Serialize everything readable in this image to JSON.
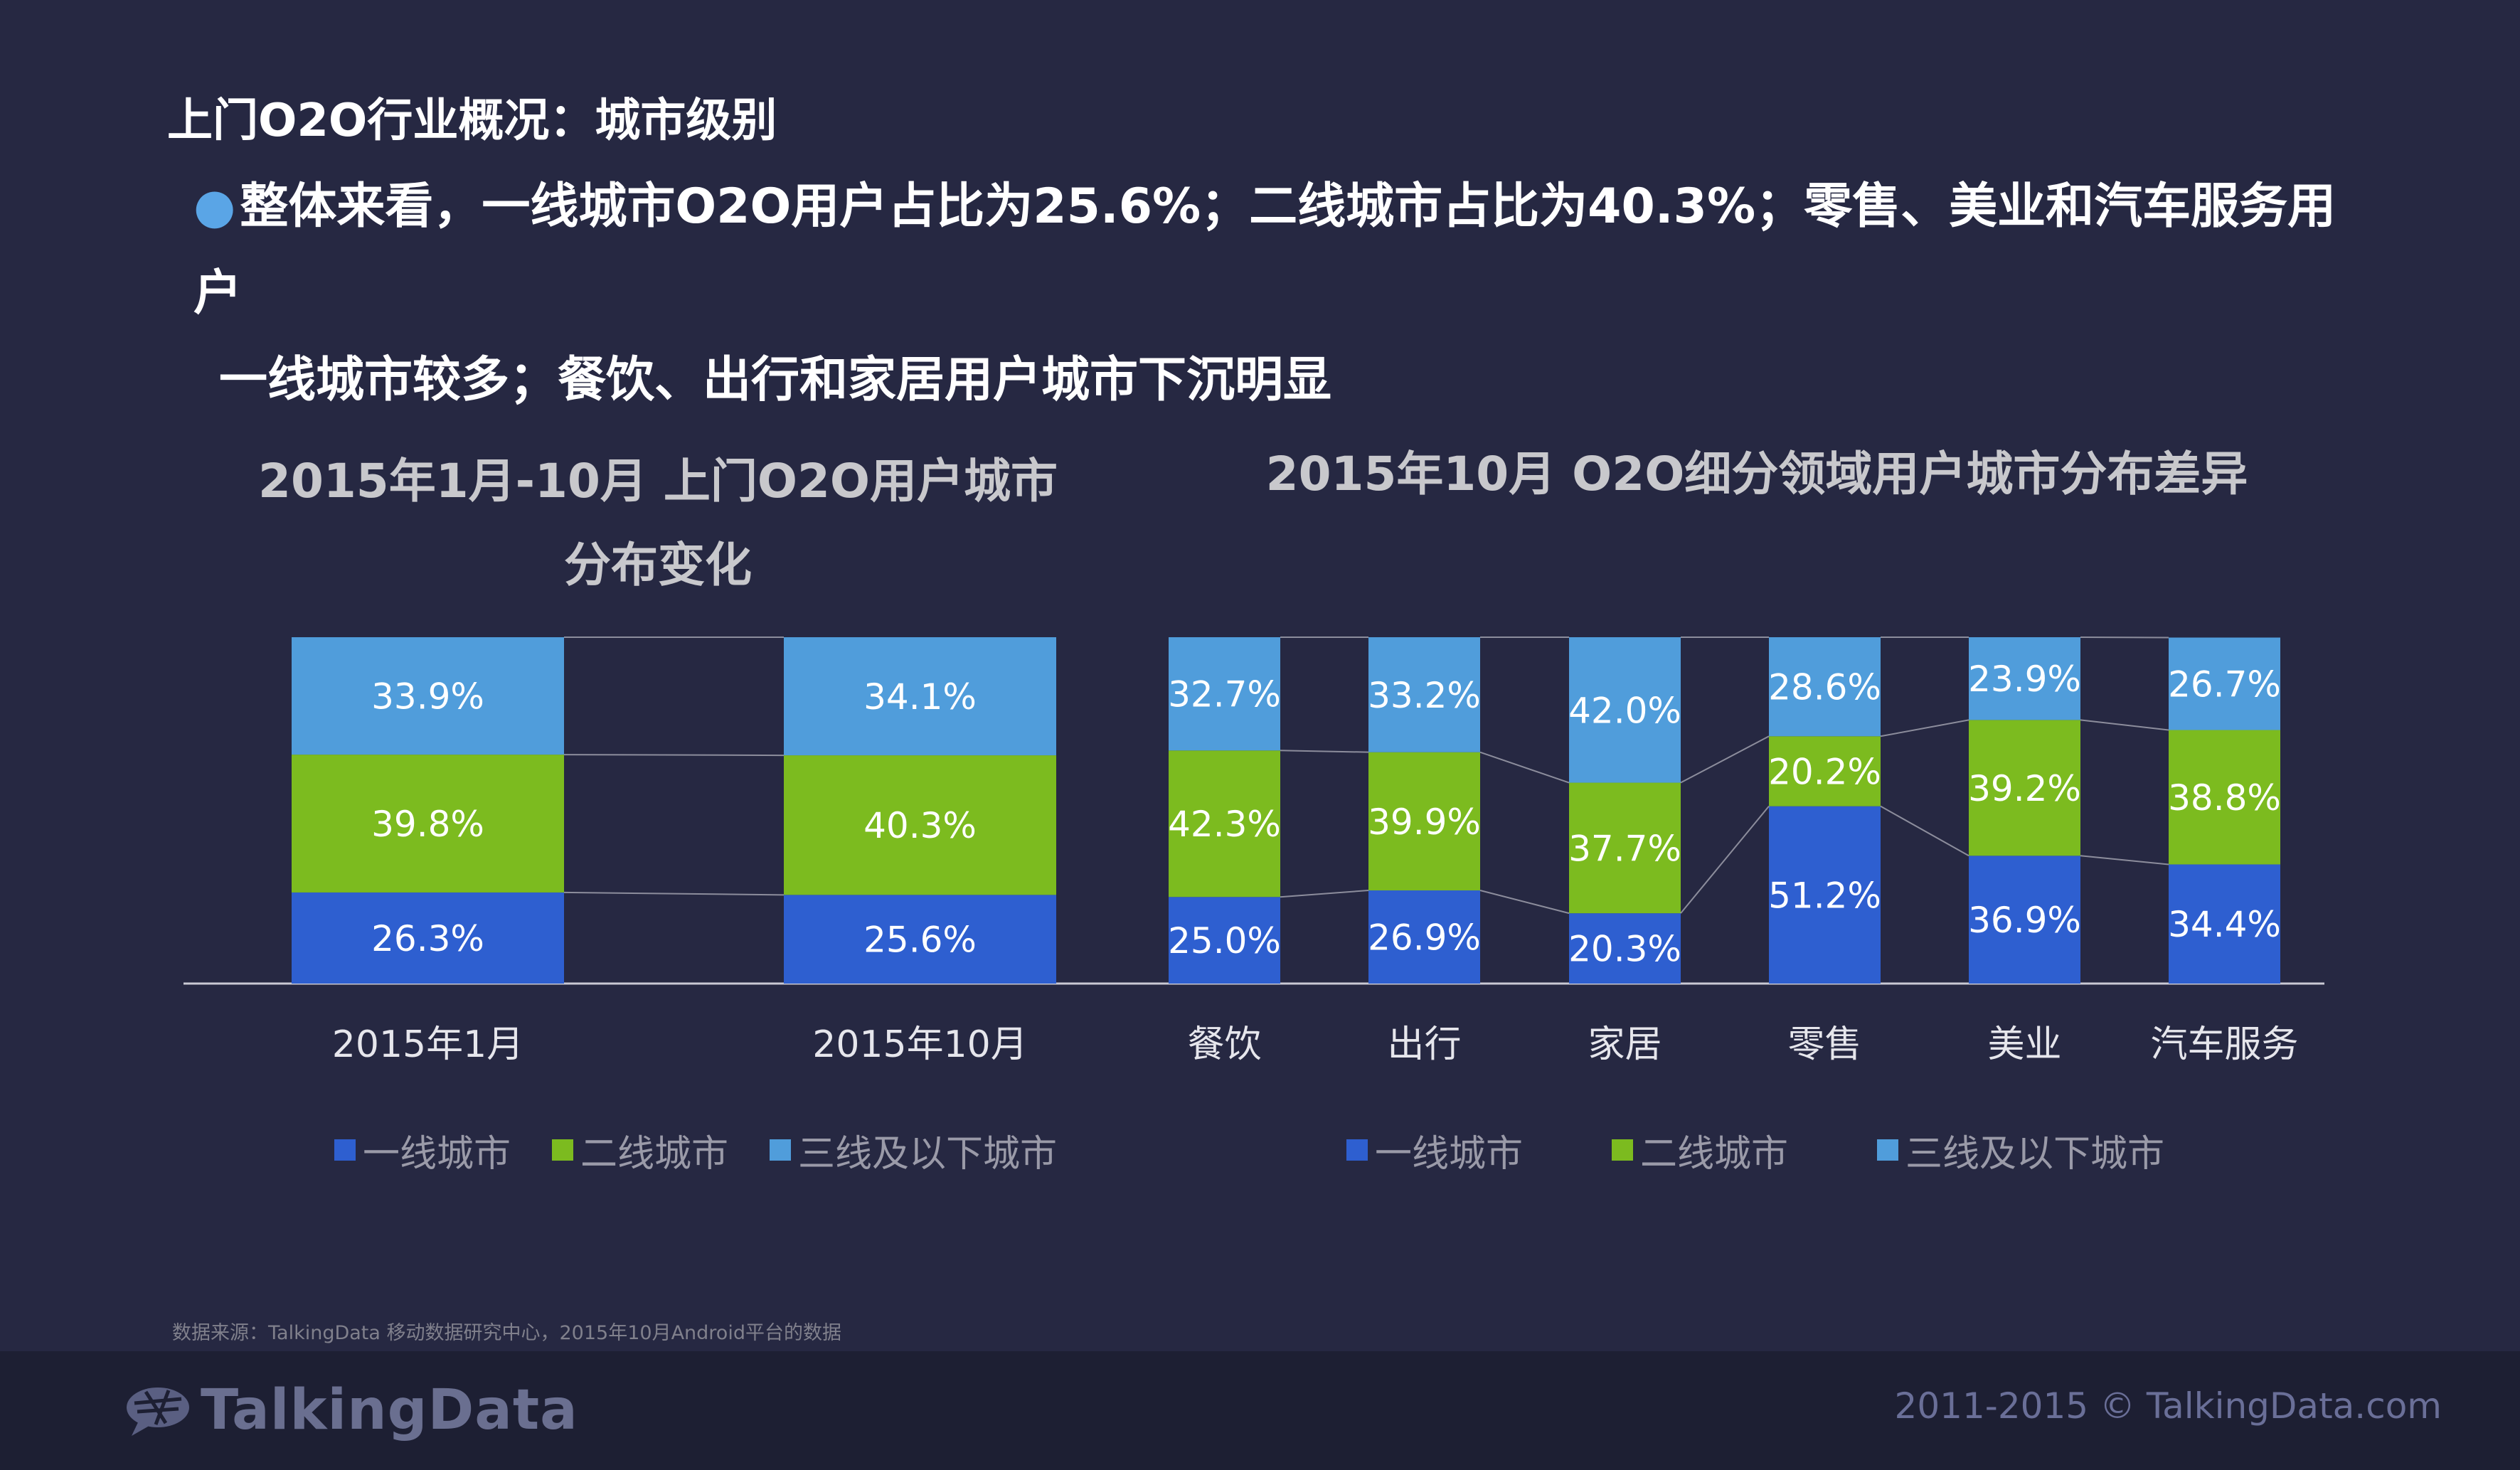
{
  "heading": "上门O2O行业概况：城市级别",
  "bullet": {
    "line1": "整体来看，一线城市O2O用户占比为25.6%；二线城市占比为40.3%；零售、美业和汽车服务用户",
    "line2": "一线城市较多；餐饮、出行和家居用户城市下沉明显"
  },
  "left_title": {
    "line1": "2015年1月-10月  上门O2O用户城市",
    "line2": "分布变化"
  },
  "right_title": "2015年10月  O2O细分领域用户城市分布差异",
  "colors": {
    "tier1": "#2e5fd0",
    "tier2": "#7cbb1f",
    "tier3": "#509ddb"
  },
  "legend": [
    "一线城市",
    "二线城市",
    "三线及以下城市"
  ],
  "chart_data": [
    {
      "type": "bar",
      "stacked": true,
      "title": "2015年1月-10月  上门O2O用户城市分布变化",
      "categories": [
        "2015年1月",
        "2015年10月"
      ],
      "series": [
        {
          "name": "一线城市",
          "values": [
            26.3,
            25.6
          ]
        },
        {
          "name": "二线城市",
          "values": [
            39.8,
            40.3
          ]
        },
        {
          "name": "三线及以下城市",
          "values": [
            33.9,
            34.1
          ]
        }
      ],
      "ylim": [
        0,
        100
      ],
      "legend_position": "bottom"
    },
    {
      "type": "bar",
      "stacked": true,
      "title": "2015年10月  O2O细分领域用户城市分布差异",
      "categories": [
        "餐饮",
        "出行",
        "家居",
        "零售",
        "美业",
        "汽车服务"
      ],
      "series": [
        {
          "name": "一线城市",
          "values": [
            25.0,
            26.9,
            20.3,
            51.2,
            36.9,
            34.4
          ]
        },
        {
          "name": "二线城市",
          "values": [
            42.3,
            39.9,
            37.7,
            20.2,
            39.2,
            38.8
          ]
        },
        {
          "name": "三线及以下城市",
          "values": [
            32.7,
            33.2,
            42.0,
            28.6,
            23.9,
            26.7
          ]
        }
      ],
      "ylim": [
        0,
        100
      ],
      "legend_position": "bottom"
    }
  ],
  "source": "数据来源：TalkingData 移动数据研究中心，2015年10月Android平台的数据",
  "logo_text": "TalkingData",
  "copyright": "2011-2015 © TalkingData.com"
}
